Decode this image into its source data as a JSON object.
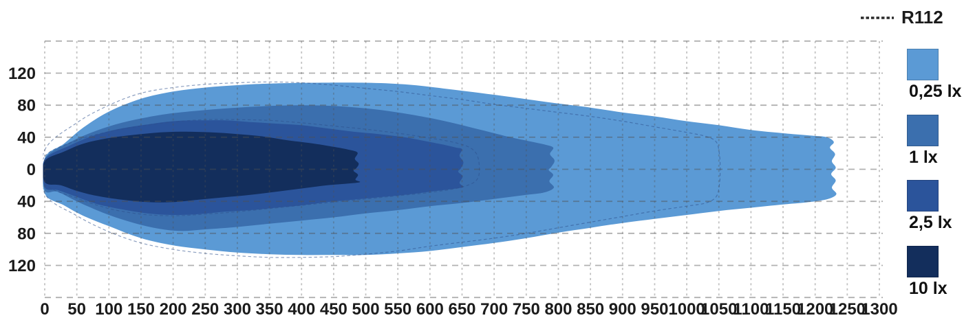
{
  "legend": {
    "r112": {
      "label": "R112",
      "dash_color": "#2b2b2b"
    },
    "items": [
      {
        "label": "0,25 lx",
        "color": "#5B9AD5"
      },
      {
        "label": "1 lx",
        "color": "#3B6FAE"
      },
      {
        "label": "2,5 lx",
        "color": "#2B549B"
      },
      {
        "label": "10 lx",
        "color": "#132E5C"
      }
    ]
  },
  "chart_data": {
    "type": "area",
    "title": "",
    "xlabel": "",
    "ylabel": "",
    "xlim": [
      0,
      1300
    ],
    "ylim": [
      -160,
      160
    ],
    "grid": true,
    "legend_position": "right",
    "x_ticks": [
      0,
      50,
      100,
      150,
      200,
      250,
      300,
      350,
      400,
      450,
      500,
      550,
      600,
      650,
      700,
      750,
      800,
      850,
      900,
      950,
      1000,
      1050,
      1100,
      1150,
      1200,
      1250,
      1300
    ],
    "y_ticks": [
      {
        "value": 120,
        "label": "120"
      },
      {
        "value": 80,
        "label": "80"
      },
      {
        "value": 40,
        "label": "40"
      },
      {
        "value": 0,
        "label": "0"
      },
      {
        "value": -40,
        "label": "40"
      },
      {
        "value": -80,
        "label": "80"
      },
      {
        "value": -120,
        "label": "120"
      }
    ],
    "grid_step_x": 50,
    "grid_step_y": 40,
    "series": [
      {
        "name": "0,25 lx",
        "lux": 0.25,
        "color": "#5B9AD5",
        "outline": [
          [
            0,
            14
          ],
          [
            30,
            32
          ],
          [
            60,
            52
          ],
          [
            100,
            72
          ],
          [
            150,
            88
          ],
          [
            200,
            97
          ],
          [
            250,
            102
          ],
          [
            300,
            105
          ],
          [
            350,
            107
          ],
          [
            420,
            108
          ],
          [
            500,
            108
          ],
          [
            560,
            106
          ],
          [
            620,
            101
          ],
          [
            700,
            93
          ],
          [
            800,
            82
          ],
          [
            850,
            77
          ],
          [
            900,
            71
          ],
          [
            950,
            66
          ],
          [
            1000,
            60
          ],
          [
            1050,
            55
          ],
          [
            1100,
            49
          ],
          [
            1150,
            45
          ],
          [
            1195,
            42
          ],
          [
            1218,
            40
          ],
          [
            1229,
            34
          ],
          [
            1223,
            27
          ],
          [
            1231,
            19
          ],
          [
            1226,
            10
          ],
          [
            1232,
            2
          ],
          [
            1225,
            -6
          ],
          [
            1232,
            -14
          ],
          [
            1226,
            -23
          ],
          [
            1233,
            -31
          ],
          [
            1220,
            -37
          ],
          [
            1190,
            -41
          ],
          [
            1150,
            -44
          ],
          [
            1100,
            -48
          ],
          [
            1050,
            -52
          ],
          [
            1000,
            -57
          ],
          [
            950,
            -62
          ],
          [
            900,
            -67
          ],
          [
            850,
            -73
          ],
          [
            800,
            -79
          ],
          [
            750,
            -86
          ],
          [
            700,
            -92
          ],
          [
            650,
            -97
          ],
          [
            600,
            -102
          ],
          [
            550,
            -105
          ],
          [
            500,
            -107
          ],
          [
            450,
            -107
          ],
          [
            400,
            -107
          ],
          [
            350,
            -106
          ],
          [
            300,
            -104
          ],
          [
            250,
            -100
          ],
          [
            200,
            -95
          ],
          [
            150,
            -86
          ],
          [
            100,
            -71
          ],
          [
            60,
            -58
          ],
          [
            30,
            -45
          ],
          [
            0,
            -30
          ]
        ]
      },
      {
        "name": "1 lx",
        "lux": 1,
        "color": "#3B6FAE",
        "outline": [
          [
            0,
            13
          ],
          [
            40,
            34
          ],
          [
            80,
            48
          ],
          [
            120,
            58
          ],
          [
            160,
            65
          ],
          [
            200,
            70
          ],
          [
            250,
            74
          ],
          [
            300,
            77
          ],
          [
            350,
            79
          ],
          [
            400,
            80
          ],
          [
            450,
            79
          ],
          [
            500,
            76
          ],
          [
            550,
            71
          ],
          [
            600,
            64
          ],
          [
            640,
            57
          ],
          [
            680,
            49
          ],
          [
            720,
            41
          ],
          [
            755,
            35
          ],
          [
            778,
            31
          ],
          [
            792,
            27
          ],
          [
            787,
            19
          ],
          [
            794,
            11
          ],
          [
            789,
            3
          ],
          [
            785,
            -1
          ],
          [
            792,
            -7
          ],
          [
            786,
            -15
          ],
          [
            793,
            -23
          ],
          [
            778,
            -29
          ],
          [
            750,
            -32
          ],
          [
            700,
            -37
          ],
          [
            650,
            -42
          ],
          [
            600,
            -46
          ],
          [
            550,
            -51
          ],
          [
            500,
            -55
          ],
          [
            450,
            -60
          ],
          [
            400,
            -64
          ],
          [
            350,
            -68
          ],
          [
            300,
            -72
          ],
          [
            250,
            -75
          ],
          [
            210,
            -77
          ],
          [
            170,
            -73
          ],
          [
            130,
            -65
          ],
          [
            90,
            -54
          ],
          [
            50,
            -40
          ],
          [
            20,
            -28
          ],
          [
            0,
            -26
          ]
        ]
      },
      {
        "name": "2,5 lx",
        "lux": 2.5,
        "color": "#2B549B",
        "outline": [
          [
            0,
            12
          ],
          [
            40,
            30
          ],
          [
            80,
            43
          ],
          [
            120,
            51
          ],
          [
            160,
            56
          ],
          [
            200,
            60
          ],
          [
            240,
            61
          ],
          [
            280,
            61
          ],
          [
            320,
            59
          ],
          [
            360,
            57
          ],
          [
            400,
            55
          ],
          [
            440,
            51
          ],
          [
            480,
            47
          ],
          [
            520,
            44
          ],
          [
            560,
            40
          ],
          [
            600,
            34
          ],
          [
            625,
            30
          ],
          [
            641,
            27
          ],
          [
            650,
            25
          ],
          [
            646,
            17
          ],
          [
            652,
            9
          ],
          [
            648,
            1
          ],
          [
            644,
            -3
          ],
          [
            651,
            -9
          ],
          [
            646,
            -17
          ],
          [
            652,
            -22
          ],
          [
            640,
            -24
          ],
          [
            600,
            -28
          ],
          [
            560,
            -32
          ],
          [
            520,
            -35
          ],
          [
            480,
            -38
          ],
          [
            440,
            -41
          ],
          [
            400,
            -45
          ],
          [
            360,
            -48
          ],
          [
            320,
            -51
          ],
          [
            280,
            -53
          ],
          [
            240,
            -56
          ],
          [
            200,
            -57
          ],
          [
            160,
            -55
          ],
          [
            120,
            -50
          ],
          [
            80,
            -43
          ],
          [
            45,
            -33
          ],
          [
            20,
            -26
          ],
          [
            0,
            -22
          ]
        ]
      },
      {
        "name": "10 lx",
        "lux": 10,
        "color": "#132E5C",
        "outline": [
          [
            0,
            10
          ],
          [
            30,
            22
          ],
          [
            60,
            32
          ],
          [
            100,
            39
          ],
          [
            140,
            43
          ],
          [
            180,
            46
          ],
          [
            220,
            47
          ],
          [
            260,
            46
          ],
          [
            300,
            44
          ],
          [
            340,
            41
          ],
          [
            380,
            36
          ],
          [
            420,
            32
          ],
          [
            450,
            28
          ],
          [
            470,
            25
          ],
          [
            487,
            21
          ],
          [
            483,
            13
          ],
          [
            489,
            7
          ],
          [
            485,
            1
          ],
          [
            481,
            -2
          ],
          [
            488,
            -7
          ],
          [
            484,
            -13
          ],
          [
            491,
            -16
          ],
          [
            470,
            -18
          ],
          [
            440,
            -20
          ],
          [
            400,
            -24
          ],
          [
            360,
            -28
          ],
          [
            320,
            -32
          ],
          [
            280,
            -35
          ],
          [
            240,
            -38
          ],
          [
            200,
            -41
          ],
          [
            160,
            -41
          ],
          [
            120,
            -38
          ],
          [
            80,
            -33
          ],
          [
            50,
            -27
          ],
          [
            25,
            -20
          ],
          [
            0,
            -16
          ]
        ]
      }
    ],
    "reference": {
      "name": "R112",
      "style": "dashed",
      "contours": [
        [
          [
            0,
            24
          ],
          [
            50,
            58
          ],
          [
            100,
            80
          ],
          [
            150,
            95
          ],
          [
            200,
            102
          ],
          [
            250,
            106
          ],
          [
            300,
            108
          ],
          [
            350,
            109
          ],
          [
            400,
            108
          ],
          [
            450,
            105
          ],
          [
            500,
            101
          ],
          [
            550,
            97
          ],
          [
            600,
            92
          ],
          [
            650,
            87
          ],
          [
            700,
            81
          ],
          [
            750,
            76
          ],
          [
            800,
            71
          ],
          [
            850,
            66
          ],
          [
            900,
            60
          ],
          [
            950,
            53
          ],
          [
            1000,
            46
          ],
          [
            1030,
            41
          ],
          [
            1046,
            34
          ],
          [
            1051,
            18
          ],
          [
            1052,
            0
          ],
          [
            1051,
            -18
          ],
          [
            1046,
            -34
          ],
          [
            1030,
            -42
          ],
          [
            1000,
            -46
          ],
          [
            950,
            -52
          ],
          [
            900,
            -59
          ],
          [
            850,
            -66
          ],
          [
            800,
            -73
          ],
          [
            750,
            -80
          ],
          [
            700,
            -86
          ],
          [
            650,
            -91
          ],
          [
            600,
            -96
          ],
          [
            550,
            -102
          ],
          [
            500,
            -106
          ],
          [
            450,
            -109
          ],
          [
            400,
            -110
          ],
          [
            350,
            -110
          ],
          [
            300,
            -108
          ],
          [
            250,
            -105
          ],
          [
            200,
            -100
          ],
          [
            150,
            -92
          ],
          [
            100,
            -78
          ],
          [
            50,
            -58
          ],
          [
            0,
            -30
          ]
        ],
        [
          [
            0,
            16
          ],
          [
            50,
            36
          ],
          [
            100,
            47
          ],
          [
            150,
            54
          ],
          [
            200,
            59
          ],
          [
            250,
            62
          ],
          [
            300,
            62
          ],
          [
            350,
            61
          ],
          [
            400,
            58
          ],
          [
            450,
            54
          ],
          [
            500,
            50
          ],
          [
            550,
            45
          ],
          [
            600,
            39
          ],
          [
            635,
            34
          ],
          [
            660,
            28
          ],
          [
            672,
            20
          ],
          [
            676,
            10
          ],
          [
            677,
            0
          ],
          [
            676,
            -8
          ],
          [
            672,
            -14
          ],
          [
            662,
            -19
          ],
          [
            640,
            -24
          ],
          [
            600,
            -29
          ],
          [
            550,
            -33
          ],
          [
            500,
            -37
          ],
          [
            450,
            -41
          ],
          [
            400,
            -45
          ],
          [
            350,
            -49
          ],
          [
            300,
            -53
          ],
          [
            250,
            -56
          ],
          [
            200,
            -58
          ],
          [
            150,
            -56
          ],
          [
            100,
            -49
          ],
          [
            50,
            -36
          ],
          [
            0,
            -18
          ]
        ]
      ]
    }
  }
}
